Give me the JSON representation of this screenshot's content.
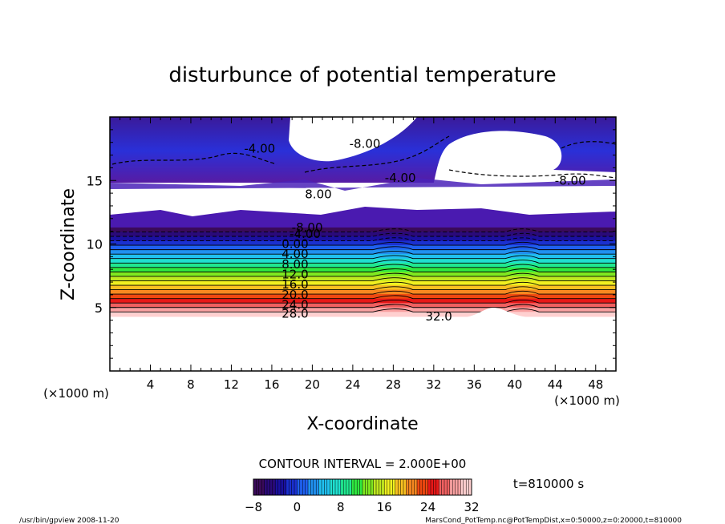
{
  "chart_data": {
    "type": "heatmap",
    "title": "disturbunce of potential temperature",
    "xlabel": "X-coordinate",
    "ylabel": "Z-coordinate",
    "x_unit_left": "(×1000 m)",
    "x_unit_right": "(×1000 m)",
    "xlim": [
      0,
      50
    ],
    "ylim": [
      0,
      20
    ],
    "x_ticks": [
      4,
      8,
      12,
      16,
      20,
      24,
      28,
      32,
      36,
      40,
      44,
      48
    ],
    "y_ticks": [
      5,
      10,
      15
    ],
    "contour_interval_text": "CONTOUR INTERVAL = 2.000E+00",
    "time_text": "t=810000 s",
    "colorbar": {
      "min": -8,
      "max": 32,
      "ticks": [
        -8,
        0,
        8,
        16,
        24,
        32
      ],
      "colors": [
        "#3a0a5a",
        "#2a0a7a",
        "#1a10a0",
        "#1a30d0",
        "#1f60f0",
        "#2090f0",
        "#20c0f0",
        "#20e0d0",
        "#20e890",
        "#30e840",
        "#80e820",
        "#c0e820",
        "#f0f020",
        "#f8c020",
        "#f88820",
        "#f04810",
        "#e81818",
        "#f06060",
        "#f8a0a0",
        "#ffd0d0"
      ]
    },
    "stratified_layers": {
      "z_bottom": 4.3,
      "z_top": 11.3,
      "value_bottom": 32,
      "value_top": -8
    },
    "contour_labels": [
      {
        "text": "-4.00",
        "x": 14.8,
        "z": 17.5
      },
      {
        "text": "-8.00",
        "x": 25.2,
        "z": 17.9
      },
      {
        "text": "-4.00",
        "x": 28.7,
        "z": 15.2
      },
      {
        "text": "-8.00",
        "x": 45.5,
        "z": 15.0
      },
      {
        "text": "8.00",
        "x": 20.6,
        "z": 13.9
      },
      {
        "text": "-8.00",
        "x": 19.5,
        "z": 11.3
      },
      {
        "text": "-4.00",
        "x": 19.3,
        "z": 10.8
      },
      {
        "text": "0.00",
        "x": 18.3,
        "z": 10.0
      },
      {
        "text": "4.00",
        "x": 18.3,
        "z": 9.2
      },
      {
        "text": "8.00",
        "x": 18.3,
        "z": 8.4
      },
      {
        "text": "12.0",
        "x": 18.3,
        "z": 7.6
      },
      {
        "text": "16.0",
        "x": 18.3,
        "z": 6.8
      },
      {
        "text": "20.0",
        "x": 18.3,
        "z": 6.0
      },
      {
        "text": "24.0",
        "x": 18.3,
        "z": 5.2
      },
      {
        "text": "28.0",
        "x": 18.3,
        "z": 4.5
      },
      {
        "text": "32.0",
        "x": 32.5,
        "z": 4.3
      }
    ]
  },
  "footer": {
    "left": "/usr/bin/gpview   2008-11-20",
    "right": "MarsCond_PotTemp.nc@PotTempDist,x=0:50000,z=0:20000,t=810000"
  }
}
